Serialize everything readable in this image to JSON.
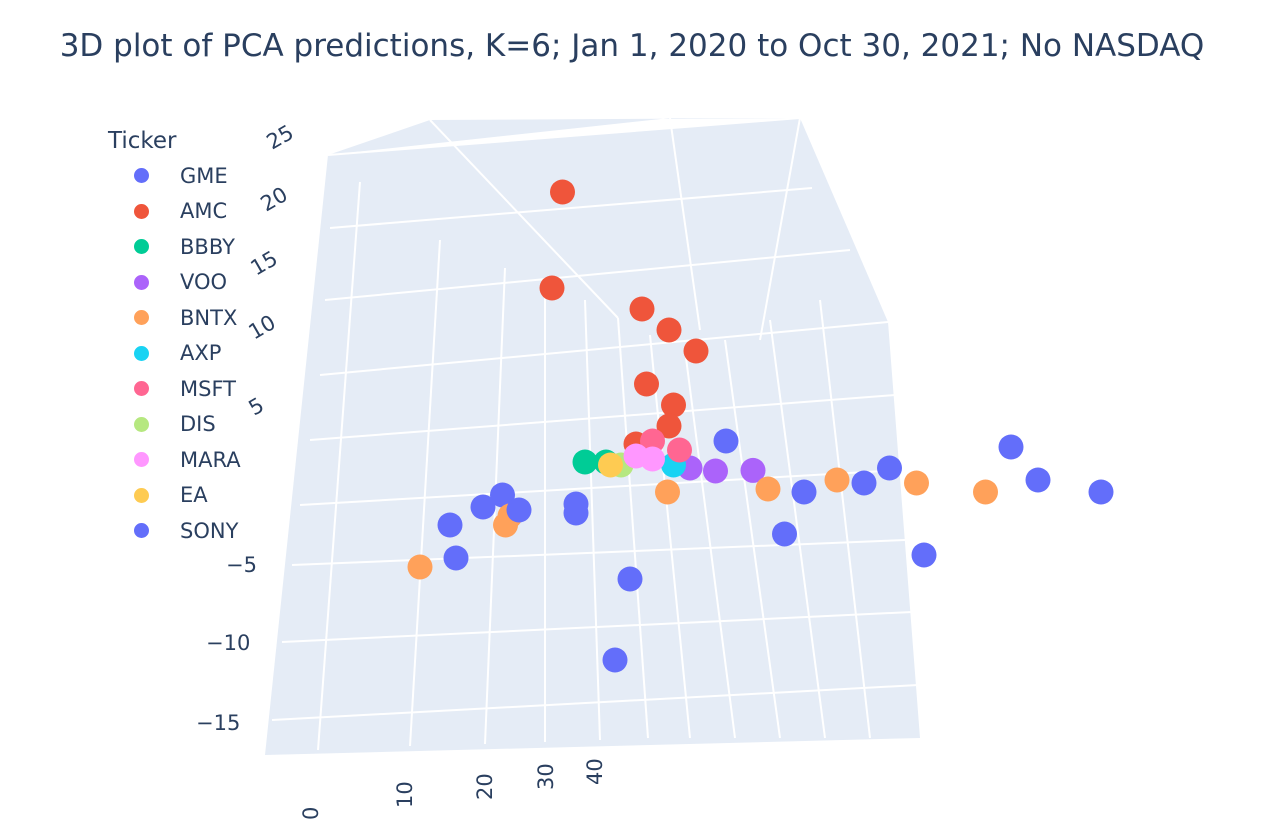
{
  "chart_data": {
    "type": "scatter",
    "title": "3D plot of PCA predictions, K=6; Jan 1, 2020 to Oct 30, 2021; No NASDAQ",
    "legend": {
      "title": "Ticker",
      "placement": "top-left"
    },
    "z_axis": {
      "ticks": [
        "25",
        "20",
        "15",
        "10",
        "5",
        "−5",
        "−10",
        "−15"
      ]
    },
    "x_axis": {
      "ticks": [
        "0",
        "10",
        "20",
        "30",
        "40"
      ]
    },
    "grid": true,
    "series": [
      {
        "name": "GME",
        "color": "#636efa",
        "points": [
          [
            -9,
            -3,
            -0.5
          ],
          [
            -2,
            -3,
            -2
          ],
          [
            10,
            1,
            3
          ],
          [
            25,
            2,
            0.5
          ],
          [
            36,
            3,
            2
          ],
          [
            -6,
            4,
            -3
          ],
          [
            18,
            0,
            -1
          ],
          [
            30,
            -1,
            -6
          ],
          [
            -12,
            -1,
            -2
          ]
        ]
      },
      {
        "name": "AMC",
        "color": "#ef553b",
        "points": [
          [
            -5,
            0,
            24
          ],
          [
            -6,
            0,
            16
          ],
          [
            2,
            1,
            14
          ],
          [
            4,
            2,
            12
          ],
          [
            6,
            3,
            10
          ],
          [
            3,
            0,
            8
          ],
          [
            5,
            1,
            6
          ],
          [
            4,
            2,
            4
          ],
          [
            2,
            0,
            3
          ]
        ]
      },
      {
        "name": "BBBY",
        "color": "#00cc96",
        "points": [
          [
            -4,
            2,
            1
          ],
          [
            -2,
            2,
            1
          ]
        ]
      },
      {
        "name": "VOO",
        "color": "#ab63fa",
        "points": [
          [
            6,
            2,
            0.5
          ],
          [
            9,
            1,
            0.5
          ],
          [
            12,
            2,
            0.3
          ]
        ]
      },
      {
        "name": "BNTX",
        "color": "#ffa15a",
        "points": [
          [
            -18,
            -1,
            -7
          ],
          [
            -11,
            1,
            -4
          ],
          [
            -10,
            0,
            -3
          ],
          [
            5,
            0,
            -1
          ],
          [
            20,
            2,
            -0.5
          ],
          [
            27,
            3,
            -1
          ],
          [
            33,
            4,
            -2
          ],
          [
            14,
            1,
            -1
          ]
        ]
      },
      {
        "name": "AXP",
        "color": "#19d3f3",
        "points": [
          [
            5,
            1,
            1
          ]
        ]
      },
      {
        "name": "MSFT",
        "color": "#ff6692",
        "points": [
          [
            3,
            1,
            3
          ],
          [
            5,
            2,
            2
          ]
        ]
      },
      {
        "name": "DIS",
        "color": "#b6e880",
        "points": [
          [
            0,
            1,
            1
          ]
        ]
      },
      {
        "name": "MARA",
        "color": "#ff97ff",
        "points": [
          [
            2,
            0,
            2
          ],
          [
            3,
            1,
            1.5
          ]
        ]
      },
      {
        "name": "EA",
        "color": "#fecb52",
        "points": [
          [
            -1,
            1,
            1
          ]
        ]
      },
      {
        "name": "SONY",
        "color": "#636efa",
        "points": [
          [
            -14,
            -3,
            -3
          ],
          [
            -8,
            -2,
            -2
          ],
          [
            -14,
            -2,
            -6
          ],
          [
            2,
            -1,
            -8
          ],
          [
            0,
            0,
            -15
          ],
          [
            15,
            2,
            -5
          ],
          [
            22,
            3,
            -1
          ],
          [
            38,
            4,
            -1
          ],
          [
            44,
            4,
            -2
          ]
        ]
      }
    ]
  }
}
